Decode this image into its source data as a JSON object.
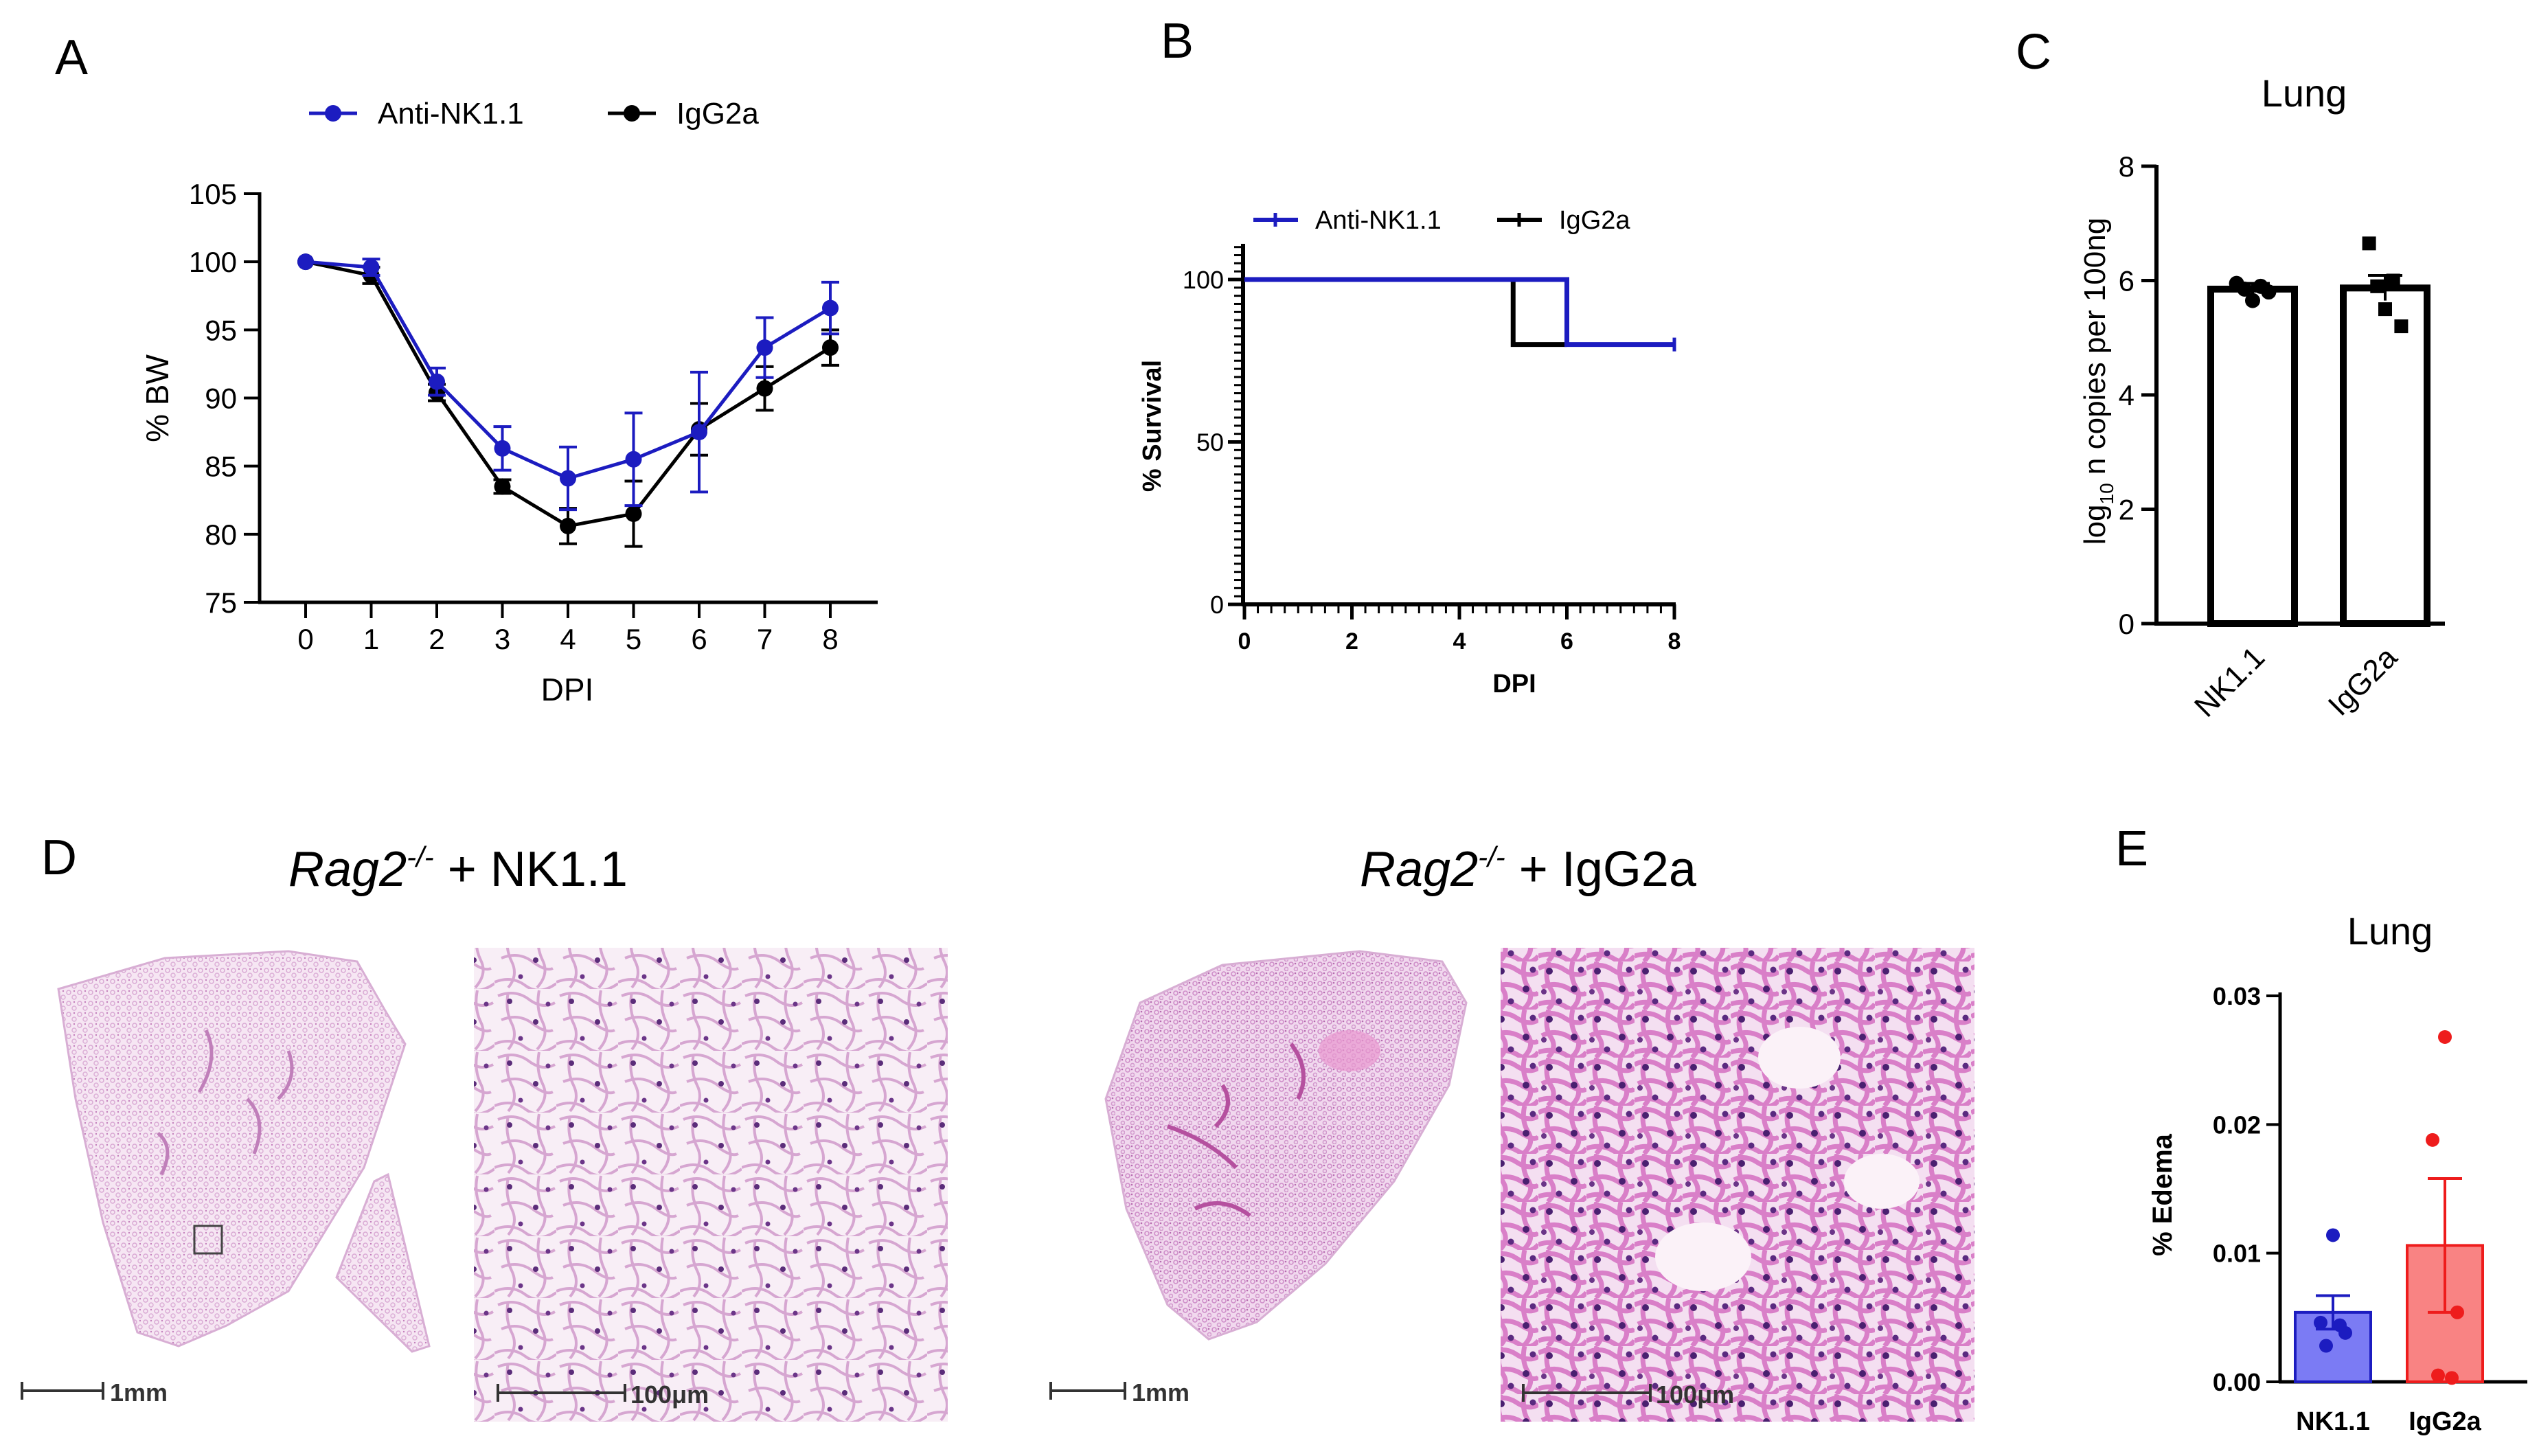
{
  "colors": {
    "blue": "#1c1cc0",
    "black": "#000000",
    "red": "#ee1c1c",
    "blue_fill": "#7b7bf4",
    "red_fill": "#f98383",
    "tissue_light": "#f2dcef",
    "tissue_dark": "#8a2f86"
  },
  "panels": {
    "A": "A",
    "B": "B",
    "C": "C",
    "D": "D",
    "E": "E"
  },
  "chart_data": [
    {
      "id": "A",
      "type": "line",
      "title": "",
      "xlabel": "DPI",
      "ylabel": "% BW",
      "x": [
        0,
        1,
        2,
        3,
        4,
        5,
        6,
        7,
        8
      ],
      "xticks": [
        "0",
        "1",
        "2",
        "3",
        "4",
        "5",
        "6",
        "7",
        "8"
      ],
      "yticks": [
        "75",
        "80",
        "85",
        "90",
        "95",
        "100",
        "105"
      ],
      "ylim": [
        75,
        105
      ],
      "legend": [
        "Anti-NK1.1",
        "IgG2a"
      ],
      "series": [
        {
          "name": "Anti-NK1.1",
          "color": "#1c1cc0",
          "values": [
            100,
            99.6,
            91.2,
            86.3,
            84.1,
            85.5,
            87.5,
            93.7,
            96.6
          ],
          "errors": [
            0,
            0.6,
            1.0,
            1.6,
            2.3,
            3.4,
            4.4,
            2.2,
            1.9
          ]
        },
        {
          "name": "IgG2a",
          "color": "#000000",
          "values": [
            100,
            99.0,
            90.4,
            83.5,
            80.6,
            81.5,
            87.7,
            90.7,
            93.7
          ],
          "errors": [
            0,
            0.6,
            0.6,
            0.5,
            1.3,
            2.4,
            1.9,
            1.6,
            1.3
          ]
        }
      ]
    },
    {
      "id": "B",
      "type": "line",
      "title": "",
      "xlabel": "DPI",
      "ylabel": "% Survival",
      "xticks": [
        "0",
        "2",
        "4",
        "6",
        "8"
      ],
      "yticks": [
        "0",
        "50",
        "100"
      ],
      "xlim": [
        0,
        8
      ],
      "ylim": [
        0,
        100
      ],
      "legend": [
        "Anti-NK1.1",
        "IgG2a"
      ],
      "series": [
        {
          "name": "Anti-NK1.1",
          "color": "#1c1cc0",
          "steps": [
            [
              0,
              100
            ],
            [
              6,
              100
            ],
            [
              6,
              80
            ],
            [
              8,
              80
            ]
          ]
        },
        {
          "name": "IgG2a",
          "color": "#000000",
          "steps": [
            [
              0,
              100
            ],
            [
              5,
              100
            ],
            [
              5,
              80
            ],
            [
              6,
              80
            ]
          ]
        }
      ]
    },
    {
      "id": "C",
      "type": "bar",
      "title": "Lung",
      "ylabel_main": "log",
      "ylabel_sub": "10",
      "ylabel_rest": " n copies per 100ng",
      "categories": [
        "NK1.1",
        "IgG2a"
      ],
      "values": [
        5.85,
        5.87
      ],
      "errors": [
        0.1,
        0.22
      ],
      "points": [
        [
          5.95,
          5.85,
          5.65,
          5.9,
          5.8
        ],
        [
          6.65,
          5.9,
          5.5,
          6.0,
          5.2
        ]
      ],
      "yticks": [
        "0",
        "2",
        "4",
        "6",
        "8"
      ],
      "ylim": [
        0,
        8
      ]
    },
    {
      "id": "E",
      "type": "bar",
      "title": "Lung",
      "ylabel": "% Edema",
      "categories": [
        "NK1.1",
        "IgG2a"
      ],
      "values": [
        0.0054,
        0.0106
      ],
      "errors": [
        0.0013,
        0.0052
      ],
      "colors": [
        "#1c1cc0",
        "#ee1c1c"
      ],
      "points": [
        [
          0.0114,
          0.0046,
          0.0038,
          0.0028,
          0.0044
        ],
        [
          0.0268,
          0.0188,
          0.0054,
          0.0005,
          0.0003
        ]
      ],
      "yticks": [
        "0.00",
        "0.01",
        "0.02",
        "0.03"
      ],
      "ylim": [
        0,
        0.03
      ]
    }
  ],
  "histology": {
    "left_title_italic": "Rag2",
    "left_title_sup": "-/-",
    "left_title_rest": " + NK1.1",
    "right_title_italic": "Rag2",
    "right_title_sup": "-/-",
    "right_title_rest": " + IgG2a",
    "scale_low": "1mm",
    "scale_high": "100μm"
  }
}
